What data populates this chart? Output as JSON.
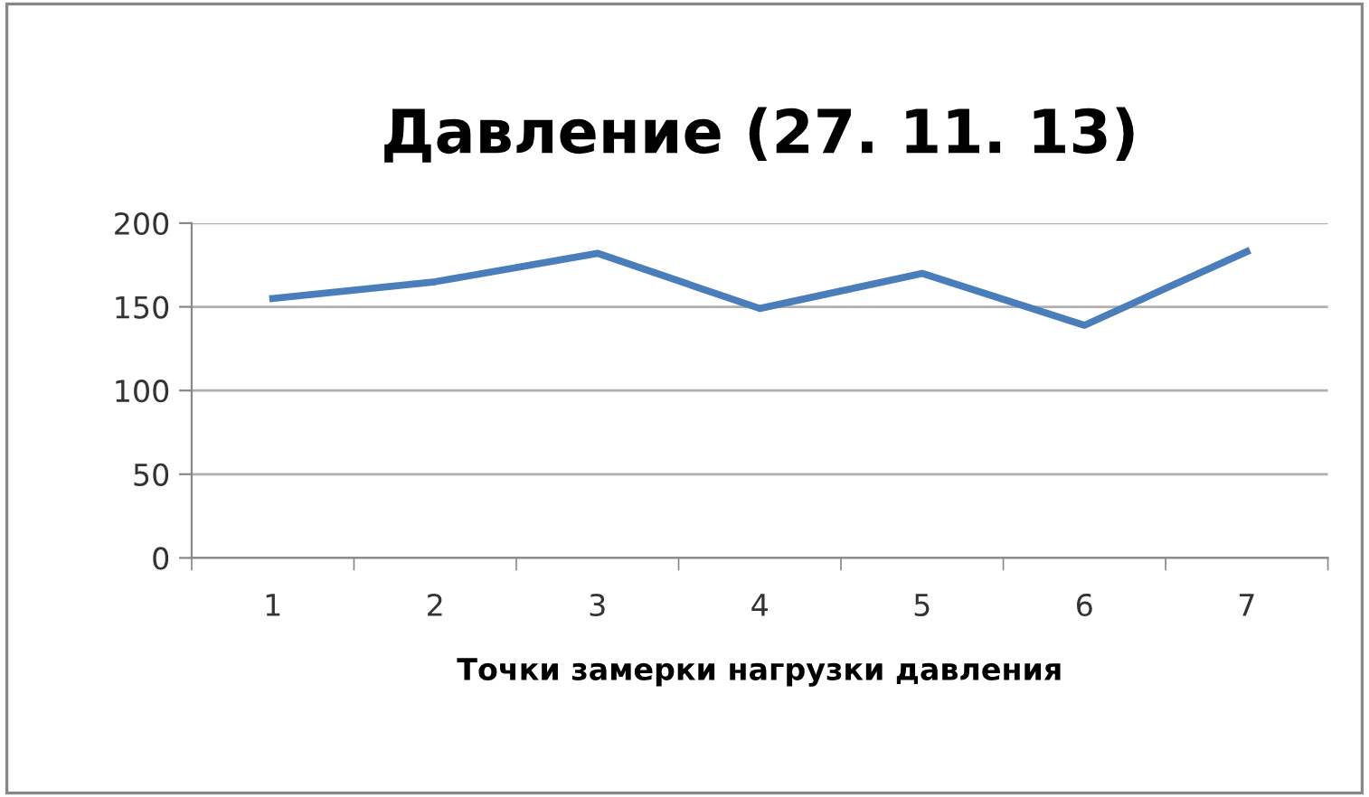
{
  "chart_data": {
    "type": "line",
    "title": "Давление (27. 11. 13)",
    "xlabel": "Точки замерки нагрузки давления",
    "categories": [
      "1",
      "2",
      "3",
      "4",
      "5",
      "6",
      "7"
    ],
    "series": [
      {
        "color": "#4a7ebb",
        "values": [
          155,
          165,
          182,
          149,
          170,
          139,
          183
        ]
      }
    ],
    "ylim": [
      0,
      200
    ],
    "yticks": [
      0,
      50,
      100,
      150,
      200
    ],
    "grid": "y",
    "marker": "none",
    "line_style": "solid"
  }
}
